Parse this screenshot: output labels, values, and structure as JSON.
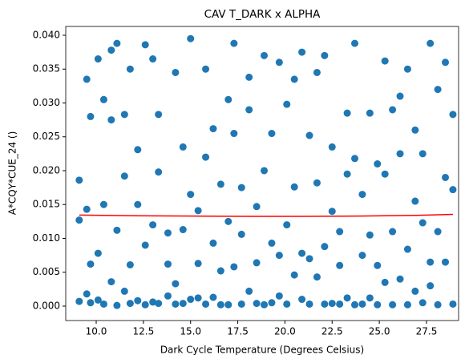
{
  "chart_data": {
    "type": "scatter",
    "title": "CAV T_DARK x ALPHA",
    "xlabel": "Dark Cycle Temperature (Degrees Celsius)",
    "ylabel": "A*CQY*CUE_24 ()",
    "xlim": [
      8.386,
      29.2
    ],
    "ylim": [
      -0.00213,
      0.0413
    ],
    "xticks": [
      {
        "value": 10,
        "label": "10.0"
      },
      {
        "value": 12.5,
        "label": "12.5"
      },
      {
        "value": 15,
        "label": "15.0"
      },
      {
        "value": 17.5,
        "label": "17.5"
      },
      {
        "value": 20,
        "label": "20.0"
      },
      {
        "value": 22.5,
        "label": "22.5"
      },
      {
        "value": 25,
        "label": "25.0"
      },
      {
        "value": 27.5,
        "label": "27.5"
      }
    ],
    "yticks": [
      {
        "value": 0,
        "label": "0.000"
      },
      {
        "value": 0.005,
        "label": "0.005"
      },
      {
        "value": 0.01,
        "label": "0.010"
      },
      {
        "value": 0.015,
        "label": "0.015"
      },
      {
        "value": 0.02,
        "label": "0.020"
      },
      {
        "value": 0.025,
        "label": "0.025"
      },
      {
        "value": 0.03,
        "label": "0.030"
      },
      {
        "value": 0.035,
        "label": "0.035"
      },
      {
        "value": 0.04,
        "label": "0.040"
      }
    ],
    "series": [
      {
        "style": "points",
        "color": "#1f77b4",
        "x": [
          9.1,
          9.1,
          9.1,
          9.5,
          9.5,
          9.5,
          9.7,
          9.7,
          9.7,
          10.1,
          10.1,
          10.1,
          10.4,
          10.4,
          10.4,
          10.8,
          10.8,
          10.8,
          11.1,
          11.1,
          11.1,
          11.5,
          11.5,
          11.5,
          11.8,
          11.8,
          11.8,
          12.2,
          12.2,
          12.2,
          12.6,
          12.6,
          12.6,
          13.0,
          13.0,
          13.0,
          13.3,
          13.3,
          13.3,
          13.8,
          13.8,
          13.8,
          14.2,
          14.2,
          14.2,
          14.6,
          14.6,
          14.6,
          15.0,
          15.0,
          15.0,
          15.4,
          15.4,
          15.4,
          15.8,
          15.8,
          15.8,
          16.2,
          16.2,
          16.2,
          16.6,
          16.6,
          16.6,
          17.0,
          17.0,
          17.0,
          17.3,
          17.3,
          17.3,
          17.7,
          17.7,
          17.7,
          18.1,
          18.1,
          18.1,
          18.5,
          18.5,
          18.5,
          18.9,
          18.9,
          18.9,
          19.3,
          19.3,
          19.3,
          19.7,
          19.7,
          19.7,
          20.1,
          20.1,
          20.1,
          20.5,
          20.5,
          20.5,
          20.9,
          20.9,
          20.9,
          21.3,
          21.3,
          21.3,
          21.7,
          21.7,
          21.7,
          22.1,
          22.1,
          22.1,
          22.5,
          22.5,
          22.5,
          22.9,
          22.9,
          22.9,
          23.3,
          23.3,
          23.3,
          23.7,
          23.7,
          23.7,
          24.1,
          24.1,
          24.1,
          24.5,
          24.5,
          24.5,
          24.9,
          24.9,
          24.9,
          25.3,
          25.3,
          25.3,
          25.7,
          25.7,
          25.7,
          26.1,
          26.1,
          26.1,
          26.5,
          26.5,
          26.5,
          26.9,
          26.9,
          26.9,
          27.3,
          27.3,
          27.3,
          27.7,
          27.7,
          27.7,
          28.1,
          28.1,
          28.1,
          28.5,
          28.5,
          28.5,
          28.9,
          28.9,
          28.9
        ],
        "values": [
          0.0127,
          0.0186,
          0.0007,
          0.0335,
          0.0143,
          0.0018,
          0.028,
          0.0005,
          0.0062,
          0.0365,
          0.0078,
          0.0009,
          0.0305,
          0.015,
          0.0003,
          0.0378,
          0.0036,
          0.0275,
          0.0388,
          0.0112,
          0.0001,
          0.0283,
          0.0192,
          0.0022,
          0.035,
          0.0061,
          0.0004,
          0.0231,
          0.0008,
          0.015,
          0.0002,
          0.009,
          0.0386,
          0.0365,
          0.0006,
          0.012,
          0.0283,
          0.0198,
          0.0004,
          0.0015,
          0.0062,
          0.0108,
          0.0345,
          0.0033,
          0.0003,
          0.0235,
          0.0004,
          0.0113,
          0.0395,
          0.0165,
          0.001,
          0.0012,
          0.0063,
          0.0141,
          0.035,
          0.0003,
          0.022,
          0.0262,
          0.0093,
          0.0013,
          0.0002,
          0.018,
          0.0052,
          0.0305,
          0.0002,
          0.0125,
          0.0388,
          0.0058,
          0.0255,
          0.0003,
          0.0106,
          0.0175,
          0.0338,
          0.0022,
          0.029,
          0.0064,
          0.0004,
          0.0147,
          0.037,
          0.0002,
          0.02,
          0.0255,
          0.0093,
          0.0005,
          0.036,
          0.0015,
          0.0075,
          0.0298,
          0.0003,
          0.012,
          0.0176,
          0.0046,
          0.0335,
          0.0078,
          0.0375,
          0.001,
          0.0252,
          0.0003,
          0.007,
          0.0182,
          0.0043,
          0.0345,
          0.037,
          0.0003,
          0.0088,
          0.0235,
          0.014,
          0.0004,
          0.0003,
          0.006,
          0.011,
          0.0285,
          0.0012,
          0.0195,
          0.0388,
          0.0002,
          0.0218,
          0.0165,
          0.0075,
          0.0003,
          0.0285,
          0.0105,
          0.0012,
          0.0002,
          0.006,
          0.021,
          0.0362,
          0.0195,
          0.0035,
          0.029,
          0.0002,
          0.011,
          0.031,
          0.004,
          0.0225,
          0.0002,
          0.0084,
          0.035,
          0.026,
          0.0022,
          0.0155,
          0.0005,
          0.0123,
          0.0225,
          0.0388,
          0.003,
          0.0065,
          0.032,
          0.0002,
          0.011,
          0.036,
          0.0065,
          0.019,
          0.0283,
          0.0003,
          0.0172
        ]
      },
      {
        "style": "line",
        "color": "#ff0000",
        "x": [
          9.1,
          12,
          15,
          18,
          21,
          24,
          27,
          28.9
        ],
        "values": [
          0.01345,
          0.01335,
          0.0133,
          0.01325,
          0.01325,
          0.0133,
          0.0134,
          0.01355
        ]
      }
    ]
  }
}
